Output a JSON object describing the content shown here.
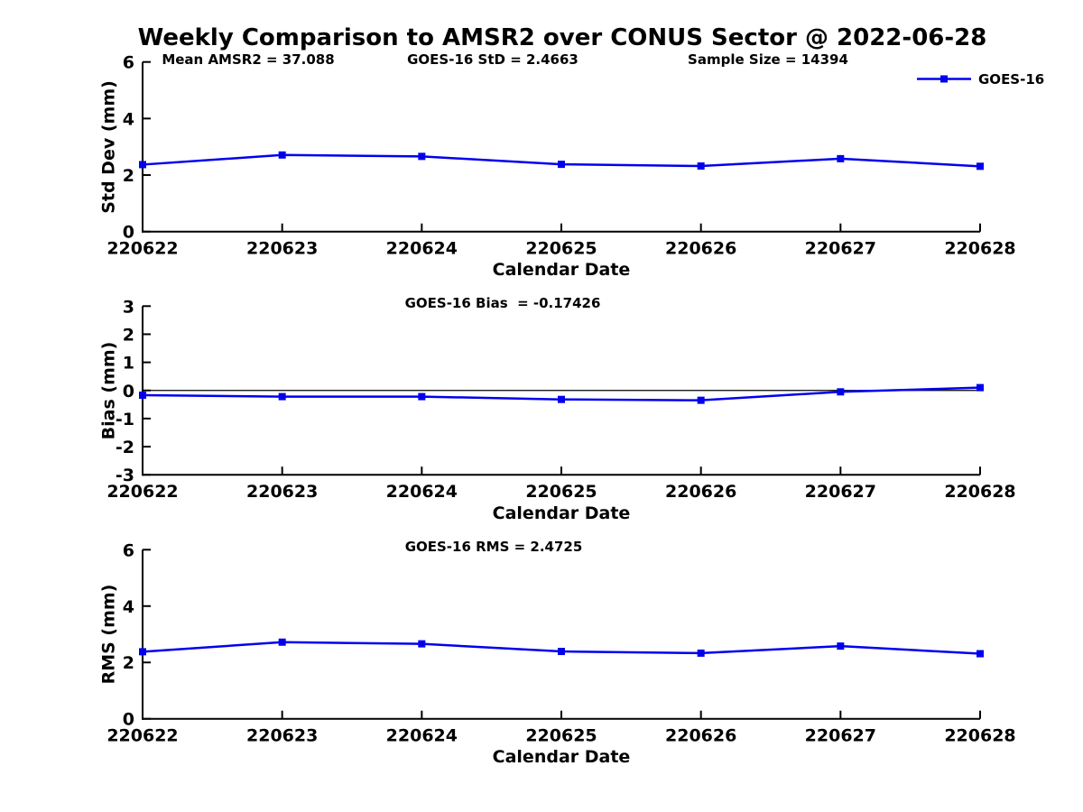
{
  "title": "Weekly Comparison to AMSR2 over CONUS Sector @ 2022-06-28",
  "colors": {
    "line": "#0000EE",
    "axis": "#000000",
    "text": "#000000",
    "background": "#FFFFFF"
  },
  "chart_data": [
    {
      "type": "line",
      "panel": "std-dev",
      "ylabel": "Std Dev (mm)",
      "xlabel": "Calendar Date",
      "x": [
        "220622",
        "220623",
        "220624",
        "220625",
        "220626",
        "220627",
        "220628"
      ],
      "series": [
        {
          "name": "GOES-16",
          "values": [
            2.37,
            2.71,
            2.66,
            2.38,
            2.32,
            2.58,
            2.31
          ]
        }
      ],
      "ylim": [
        0,
        6
      ],
      "yticks": [
        0,
        2,
        4,
        6
      ],
      "grid": false,
      "annotations": [
        "Mean AMSR2 = 37.088",
        "GOES-16 StD = 2.4663",
        "Sample Size = 14394"
      ],
      "legend": {
        "label": "GOES-16",
        "position": "top-right",
        "marker": "filled-square"
      }
    },
    {
      "type": "line",
      "panel": "bias",
      "ylabel": "Bias (mm)",
      "xlabel": "Calendar Date",
      "x": [
        "220622",
        "220623",
        "220624",
        "220625",
        "220626",
        "220627",
        "220628"
      ],
      "series": [
        {
          "name": "GOES-16",
          "values": [
            -0.17,
            -0.22,
            -0.22,
            -0.32,
            -0.35,
            -0.05,
            0.1
          ]
        }
      ],
      "ylim": [
        -3,
        3
      ],
      "yticks": [
        -3,
        -2,
        -1,
        0,
        1,
        2,
        3
      ],
      "zero_line": true,
      "grid": false,
      "annotations": [
        "GOES-16 Bias  = -0.17426"
      ]
    },
    {
      "type": "line",
      "panel": "rms",
      "ylabel": "RMS (mm)",
      "xlabel": "Calendar Date",
      "x": [
        "220622",
        "220623",
        "220624",
        "220625",
        "220626",
        "220627",
        "220628"
      ],
      "series": [
        {
          "name": "GOES-16",
          "values": [
            2.38,
            2.72,
            2.66,
            2.39,
            2.33,
            2.58,
            2.31
          ]
        }
      ],
      "ylim": [
        0,
        6
      ],
      "yticks": [
        0,
        2,
        4,
        6
      ],
      "grid": false,
      "annotations": [
        "GOES-16 RMS = 2.4725"
      ]
    }
  ]
}
